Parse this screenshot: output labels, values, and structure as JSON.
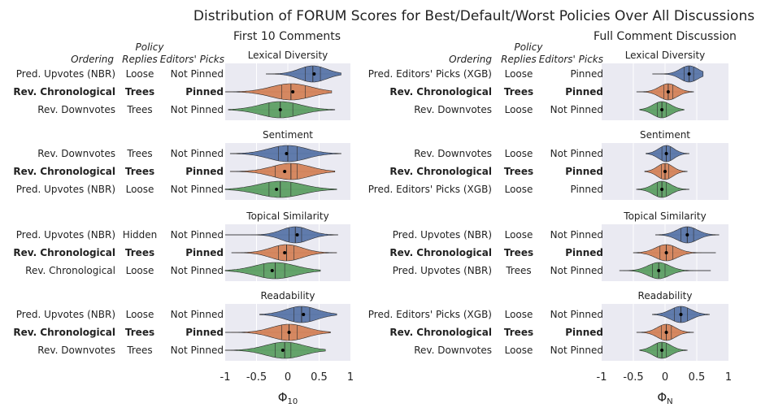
{
  "title": "Distribution of FORUM Scores for Best/Default/Worst Policies Over All Discussions",
  "colors": {
    "blue": "#5875a8",
    "orange": "#d48358",
    "green": "#5d9f63",
    "panel_bg": "#eaeaf2"
  },
  "chart_data": {
    "type": "violin",
    "xlim": [
      -1,
      1
    ],
    "column_headers": {
      "ordering": "Ordering",
      "replies": "Replies",
      "editors": "Editors' Picks",
      "policy": "Policy"
    },
    "columns": [
      {
        "subtitle": "First 10 Comments",
        "xlabel": "Φ",
        "xlabel_sub": "10",
        "ticks": [
          {
            "v": -1,
            "label": "-1"
          },
          {
            "v": -0.5,
            "label": "-0.5"
          },
          {
            "v": 0,
            "label": "0"
          },
          {
            "v": 0.5,
            "label": "0.5"
          },
          {
            "v": 1,
            "label": "1"
          }
        ],
        "panels": [
          {
            "metric": "Lexical Diversity",
            "rows": [
              {
                "ordering": "Pred. Upvotes (NBR)",
                "replies": "Loose",
                "editors": "Not Pinned",
                "bold": false,
                "color": "blue",
                "mean": 0.42,
                "median": 0.4,
                "q1": 0.28,
                "q3": 0.52,
                "min": -0.35,
                "max": 0.85,
                "spread": 0.22
              },
              {
                "ordering": "Rev. Chronological",
                "replies": "Trees",
                "editors": "Pinned",
                "bold": true,
                "color": "orange",
                "mean": 0.08,
                "median": 0.05,
                "q1": -0.1,
                "q3": 0.28,
                "min": -1.0,
                "max": 0.7,
                "spread": 0.32
              },
              {
                "ordering": "Rev. Downvotes",
                "replies": "Trees",
                "editors": "Not Pinned",
                "bold": false,
                "color": "green",
                "mean": -0.12,
                "median": -0.12,
                "q1": -0.3,
                "q3": 0.08,
                "min": -0.95,
                "max": 0.75,
                "spread": 0.32
              }
            ]
          },
          {
            "metric": "Sentiment",
            "rows": [
              {
                "ordering": "Rev. Downvotes",
                "replies": "Trees",
                "editors": "Not Pinned",
                "bold": false,
                "color": "blue",
                "mean": -0.02,
                "median": 0.0,
                "q1": -0.15,
                "q3": 0.15,
                "min": -0.92,
                "max": 0.85,
                "spread": 0.3
              },
              {
                "ordering": "Rev. Chronological",
                "replies": "Trees",
                "editors": "Pinned",
                "bold": true,
                "color": "orange",
                "mean": -0.05,
                "median": 0.05,
                "q1": -0.2,
                "q3": 0.15,
                "min": -0.92,
                "max": 0.75,
                "spread": 0.3
              },
              {
                "ordering": "Pred. Upvotes (NBR)",
                "replies": "Loose",
                "editors": "Not Pinned",
                "bold": false,
                "color": "green",
                "mean": -0.18,
                "median": -0.12,
                "q1": -0.3,
                "q3": 0.05,
                "min": -1.0,
                "max": 0.78,
                "spread": 0.35
              }
            ]
          },
          {
            "metric": "Topical Similarity",
            "rows": [
              {
                "ordering": "Pred. Upvotes (NBR)",
                "replies": "Hidden",
                "editors": "Not Pinned",
                "bold": false,
                "color": "blue",
                "mean": 0.15,
                "median": 0.12,
                "q1": 0.02,
                "q3": 0.22,
                "min": -1.0,
                "max": 0.8,
                "spread": 0.22
              },
              {
                "ordering": "Rev. Chronological",
                "replies": "Trees",
                "editors": "Pinned",
                "bold": true,
                "color": "orange",
                "mean": -0.05,
                "median": -0.02,
                "q1": -0.15,
                "q3": 0.1,
                "min": -0.9,
                "max": 0.78,
                "spread": 0.25
              },
              {
                "ordering": "Rev. Chronological",
                "replies": "Loose",
                "editors": "Not Pinned",
                "bold": false,
                "color": "green",
                "mean": -0.25,
                "median": -0.2,
                "q1": -0.38,
                "q3": -0.05,
                "min": -1.0,
                "max": 0.52,
                "spread": 0.32
              }
            ]
          },
          {
            "metric": "Readability",
            "rows": [
              {
                "ordering": "Pred. Upvotes (NBR)",
                "replies": "Loose",
                "editors": "Not Pinned",
                "bold": false,
                "color": "blue",
                "mean": 0.25,
                "median": 0.22,
                "q1": 0.1,
                "q3": 0.35,
                "min": -0.45,
                "max": 0.78,
                "spread": 0.25
              },
              {
                "ordering": "Rev. Chronological",
                "replies": "Trees",
                "editors": "Pinned",
                "bold": true,
                "color": "orange",
                "mean": 0.02,
                "median": 0.02,
                "q1": -0.1,
                "q3": 0.15,
                "min": -1.0,
                "max": 0.68,
                "spread": 0.28
              },
              {
                "ordering": "Rev. Downvotes",
                "replies": "Trees",
                "editors": "Not Pinned",
                "bold": false,
                "color": "green",
                "mean": -0.08,
                "median": -0.05,
                "q1": -0.2,
                "q3": 0.05,
                "min": -1.0,
                "max": 0.6,
                "spread": 0.3
              }
            ]
          }
        ]
      },
      {
        "subtitle": "Full Comment Discussion",
        "xlabel": "Φ",
        "xlabel_sub": "N",
        "ticks": [
          {
            "v": -1,
            "label": "-1"
          },
          {
            "v": -0.5,
            "label": "-0.5"
          },
          {
            "v": 0,
            "label": "0"
          },
          {
            "v": 0.5,
            "label": "0.5"
          },
          {
            "v": 1,
            "label": "1"
          }
        ],
        "panels": [
          {
            "metric": "Lexical Diversity",
            "rows": [
              {
                "ordering": "Pred. Editors' Picks (XGB)",
                "replies": "Loose",
                "editors": "Pinned",
                "bold": false,
                "color": "blue",
                "mean": 0.38,
                "median": 0.38,
                "q1": 0.3,
                "q3": 0.45,
                "min": -0.2,
                "max": 0.6,
                "spread": 0.14
              },
              {
                "ordering": "Rev. Chronological",
                "replies": "Trees",
                "editors": "Pinned",
                "bold": true,
                "color": "orange",
                "mean": 0.05,
                "median": 0.05,
                "q1": -0.02,
                "q3": 0.12,
                "min": -0.45,
                "max": 0.45,
                "spread": 0.14
              },
              {
                "ordering": "Rev. Downvotes",
                "replies": "Loose",
                "editors": "Not Pinned",
                "bold": false,
                "color": "green",
                "mean": -0.05,
                "median": -0.05,
                "q1": -0.12,
                "q3": 0.02,
                "min": -0.4,
                "max": 0.3,
                "spread": 0.14
              }
            ]
          },
          {
            "metric": "Sentiment",
            "rows": [
              {
                "ordering": "Rev. Downvotes",
                "replies": "Loose",
                "editors": "Not Pinned",
                "bold": false,
                "color": "blue",
                "mean": 0.02,
                "median": 0.02,
                "q1": -0.05,
                "q3": 0.08,
                "min": -0.3,
                "max": 0.38,
                "spread": 0.12
              },
              {
                "ordering": "Rev. Chronological",
                "replies": "Trees",
                "editors": "Pinned",
                "bold": true,
                "color": "orange",
                "mean": 0.0,
                "median": 0.0,
                "q1": -0.06,
                "q3": 0.06,
                "min": -0.32,
                "max": 0.35,
                "spread": 0.12
              },
              {
                "ordering": "Pred. Editors' Picks (XGB)",
                "replies": "Loose",
                "editors": "Pinned",
                "bold": false,
                "color": "green",
                "mean": -0.05,
                "median": -0.05,
                "q1": -0.12,
                "q3": 0.02,
                "min": -0.45,
                "max": 0.38,
                "spread": 0.14
              }
            ]
          },
          {
            "metric": "Topical Similarity",
            "rows": [
              {
                "ordering": "Pred. Upvotes (NBR)",
                "replies": "Loose",
                "editors": "Not Pinned",
                "bold": false,
                "color": "blue",
                "mean": 0.35,
                "median": 0.35,
                "q1": 0.25,
                "q3": 0.45,
                "min": -0.15,
                "max": 0.85,
                "spread": 0.16
              },
              {
                "ordering": "Rev. Chronological",
                "replies": "Trees",
                "editors": "Pinned",
                "bold": true,
                "color": "orange",
                "mean": 0.02,
                "median": 0.02,
                "q1": -0.08,
                "q3": 0.12,
                "min": -0.5,
                "max": 0.8,
                "spread": 0.17
              },
              {
                "ordering": "Pred. Upvotes (NBR)",
                "replies": "Trees",
                "editors": "Not Pinned",
                "bold": false,
                "color": "green",
                "mean": -0.1,
                "median": -0.1,
                "q1": -0.2,
                "q3": 0.0,
                "min": -0.72,
                "max": 0.72,
                "spread": 0.17
              }
            ]
          },
          {
            "metric": "Readability",
            "rows": [
              {
                "ordering": "Pred. Editors' Picks (XGB)",
                "replies": "Loose",
                "editors": "Not Pinned",
                "bold": false,
                "color": "blue",
                "mean": 0.25,
                "median": 0.25,
                "q1": 0.15,
                "q3": 0.35,
                "min": -0.2,
                "max": 0.7,
                "spread": 0.16
              },
              {
                "ordering": "Rev. Chronological",
                "replies": "Trees",
                "editors": "Pinned",
                "bold": true,
                "color": "orange",
                "mean": 0.02,
                "median": 0.02,
                "q1": -0.06,
                "q3": 0.1,
                "min": -0.45,
                "max": 0.45,
                "spread": 0.14
              },
              {
                "ordering": "Rev. Downvotes",
                "replies": "Loose",
                "editors": "Not Pinned",
                "bold": false,
                "color": "green",
                "mean": -0.05,
                "median": -0.05,
                "q1": -0.12,
                "q3": 0.02,
                "min": -0.4,
                "max": 0.35,
                "spread": 0.14
              }
            ]
          }
        ]
      }
    ]
  }
}
